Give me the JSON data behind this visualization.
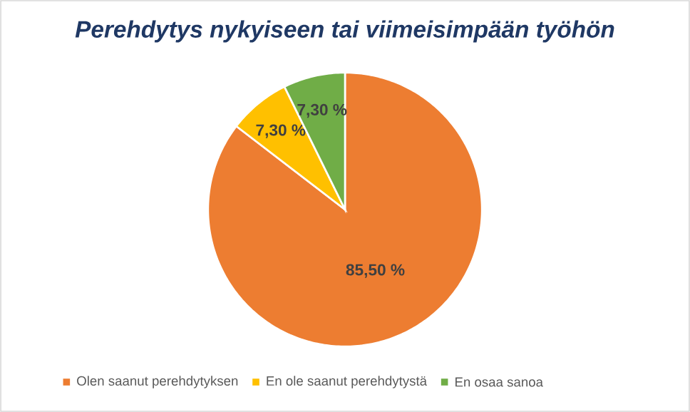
{
  "chart_data": {
    "type": "pie",
    "title": "Perehdytys nykyiseen tai viimeisimpään työhön",
    "categories": [
      "Olen saanut perehdytyksen",
      "En ole saanut perehdytystä",
      "En osaa sanoa"
    ],
    "values": [
      85.5,
      7.3,
      7.3
    ],
    "colors": [
      "#ed7d31",
      "#ffc000",
      "#70ad47"
    ],
    "value_labels": [
      "85,50 %",
      "7,30 %",
      "7,30 %"
    ],
    "legend": "bottom"
  }
}
